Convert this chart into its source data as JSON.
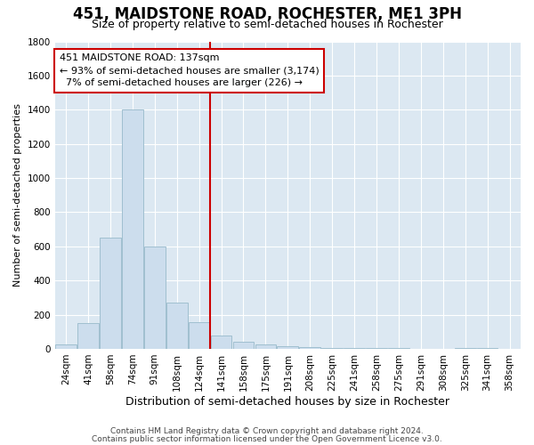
{
  "title": "451, MAIDSTONE ROAD, ROCHESTER, ME1 3PH",
  "subtitle": "Size of property relative to semi-detached houses in Rochester",
  "xlabel": "Distribution of semi-detached houses by size in Rochester",
  "ylabel": "Number of semi-detached properties",
  "bar_color": "#ccdded",
  "bar_edge_color": "#a0bfd0",
  "background_color": "#dce8f2",
  "categories": [
    "24sqm",
    "41sqm",
    "58sqm",
    "74sqm",
    "91sqm",
    "108sqm",
    "124sqm",
    "141sqm",
    "158sqm",
    "175sqm",
    "191sqm",
    "208sqm",
    "225sqm",
    "241sqm",
    "258sqm",
    "275sqm",
    "291sqm",
    "308sqm",
    "325sqm",
    "341sqm",
    "358sqm"
  ],
  "values": [
    25,
    150,
    650,
    1400,
    600,
    270,
    155,
    80,
    40,
    25,
    15,
    10,
    5,
    5,
    5,
    5,
    2,
    2,
    5,
    5,
    2
  ],
  "subject_sqm": 137,
  "pct_smaller": 93,
  "count_smaller": 3174,
  "pct_larger": 7,
  "count_larger": 226,
  "vline_color": "#cc0000",
  "annotation_box_edgecolor": "#cc0000",
  "ylim": [
    0,
    1800
  ],
  "yticks": [
    0,
    200,
    400,
    600,
    800,
    1000,
    1200,
    1400,
    1600,
    1800
  ],
  "footnote1": "Contains HM Land Registry data © Crown copyright and database right 2024.",
  "footnote2": "Contains public sector information licensed under the Open Government Licence v3.0.",
  "title_fontsize": 12,
  "subtitle_fontsize": 9,
  "ylabel_fontsize": 8,
  "xlabel_fontsize": 9,
  "tick_fontsize": 7.5,
  "annotation_fontsize": 8,
  "footnote_fontsize": 6.5
}
